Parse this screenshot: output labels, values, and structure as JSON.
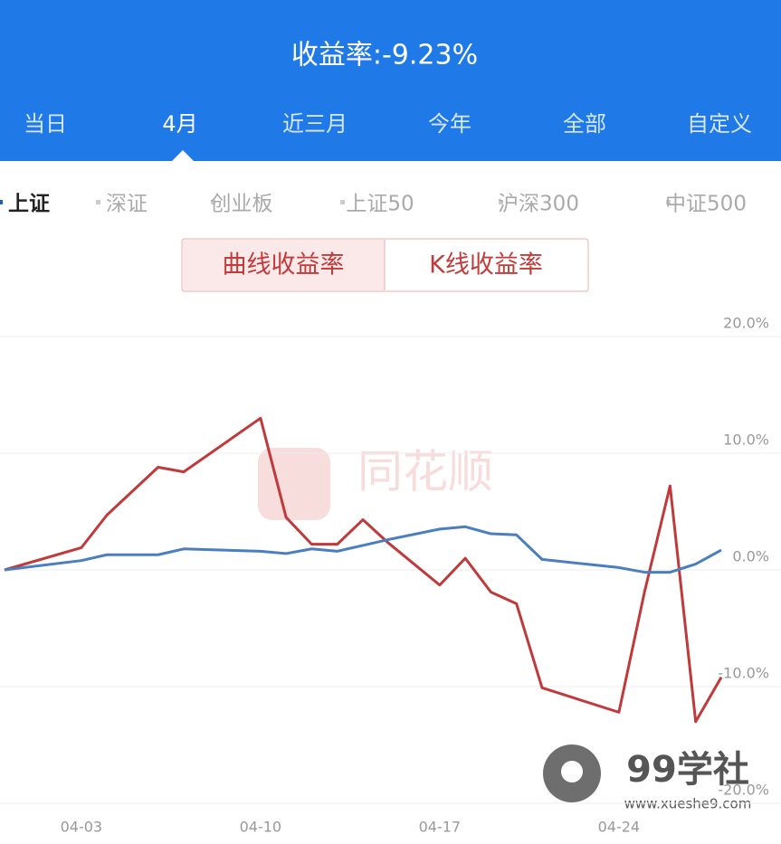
{
  "header": {
    "title": "收益率:-9.23%"
  },
  "period_tabs": {
    "items": [
      "当日",
      "4月",
      "近三月",
      "今年",
      "全部",
      "自定义"
    ],
    "active": 1
  },
  "index_tabs": {
    "items": [
      "上证",
      "深证",
      "创业板",
      "上证50",
      "沪深300",
      "中证500"
    ],
    "active": 0
  },
  "mode_toggle": {
    "items": [
      "曲线收益率",
      "K线收益率"
    ],
    "active": 0
  },
  "watermarks": {
    "center": "同花顺",
    "logo": "99学社",
    "url": "www.xueshe9.com"
  },
  "chart_data": {
    "type": "line",
    "x": [
      0,
      3,
      4,
      6,
      7,
      10,
      11,
      12,
      13,
      14,
      15,
      17,
      18,
      19,
      20,
      21,
      24,
      25,
      26,
      27,
      28
    ],
    "xlim": [
      0,
      28
    ],
    "xticks": [
      {
        "value": 3,
        "label": "04-03"
      },
      {
        "value": 10,
        "label": "04-10"
      },
      {
        "value": 17,
        "label": "04-17"
      },
      {
        "value": 24,
        "label": "04-24"
      }
    ],
    "ylim": [
      -20,
      20
    ],
    "yticks": [
      {
        "value": 20,
        "label": "20.0%"
      },
      {
        "value": 10,
        "label": "10.0%"
      },
      {
        "value": 0,
        "label": "0.0%"
      },
      {
        "value": -10,
        "label": "-10.0%"
      },
      {
        "value": -20,
        "label": "-20.0%"
      }
    ],
    "grid": true,
    "series": [
      {
        "color": "#c0393b",
        "values": [
          0,
          1.9,
          4.7,
          8.8,
          8.4,
          13.0,
          4.5,
          2.2,
          2.2,
          4.3,
          2.3,
          -1.3,
          1.0,
          -1.9,
          -2.9,
          -10.1,
          -12.2,
          -1.9,
          7.2,
          -13.0,
          -9.2
        ]
      },
      {
        "color": "#4a7ebf",
        "values": [
          0,
          0.8,
          1.3,
          1.3,
          1.8,
          1.6,
          1.4,
          1.8,
          1.6,
          2.1,
          2.6,
          3.5,
          3.7,
          3.1,
          3.0,
          0.9,
          0.2,
          -0.2,
          -0.2,
          0.5,
          1.7
        ]
      }
    ]
  }
}
